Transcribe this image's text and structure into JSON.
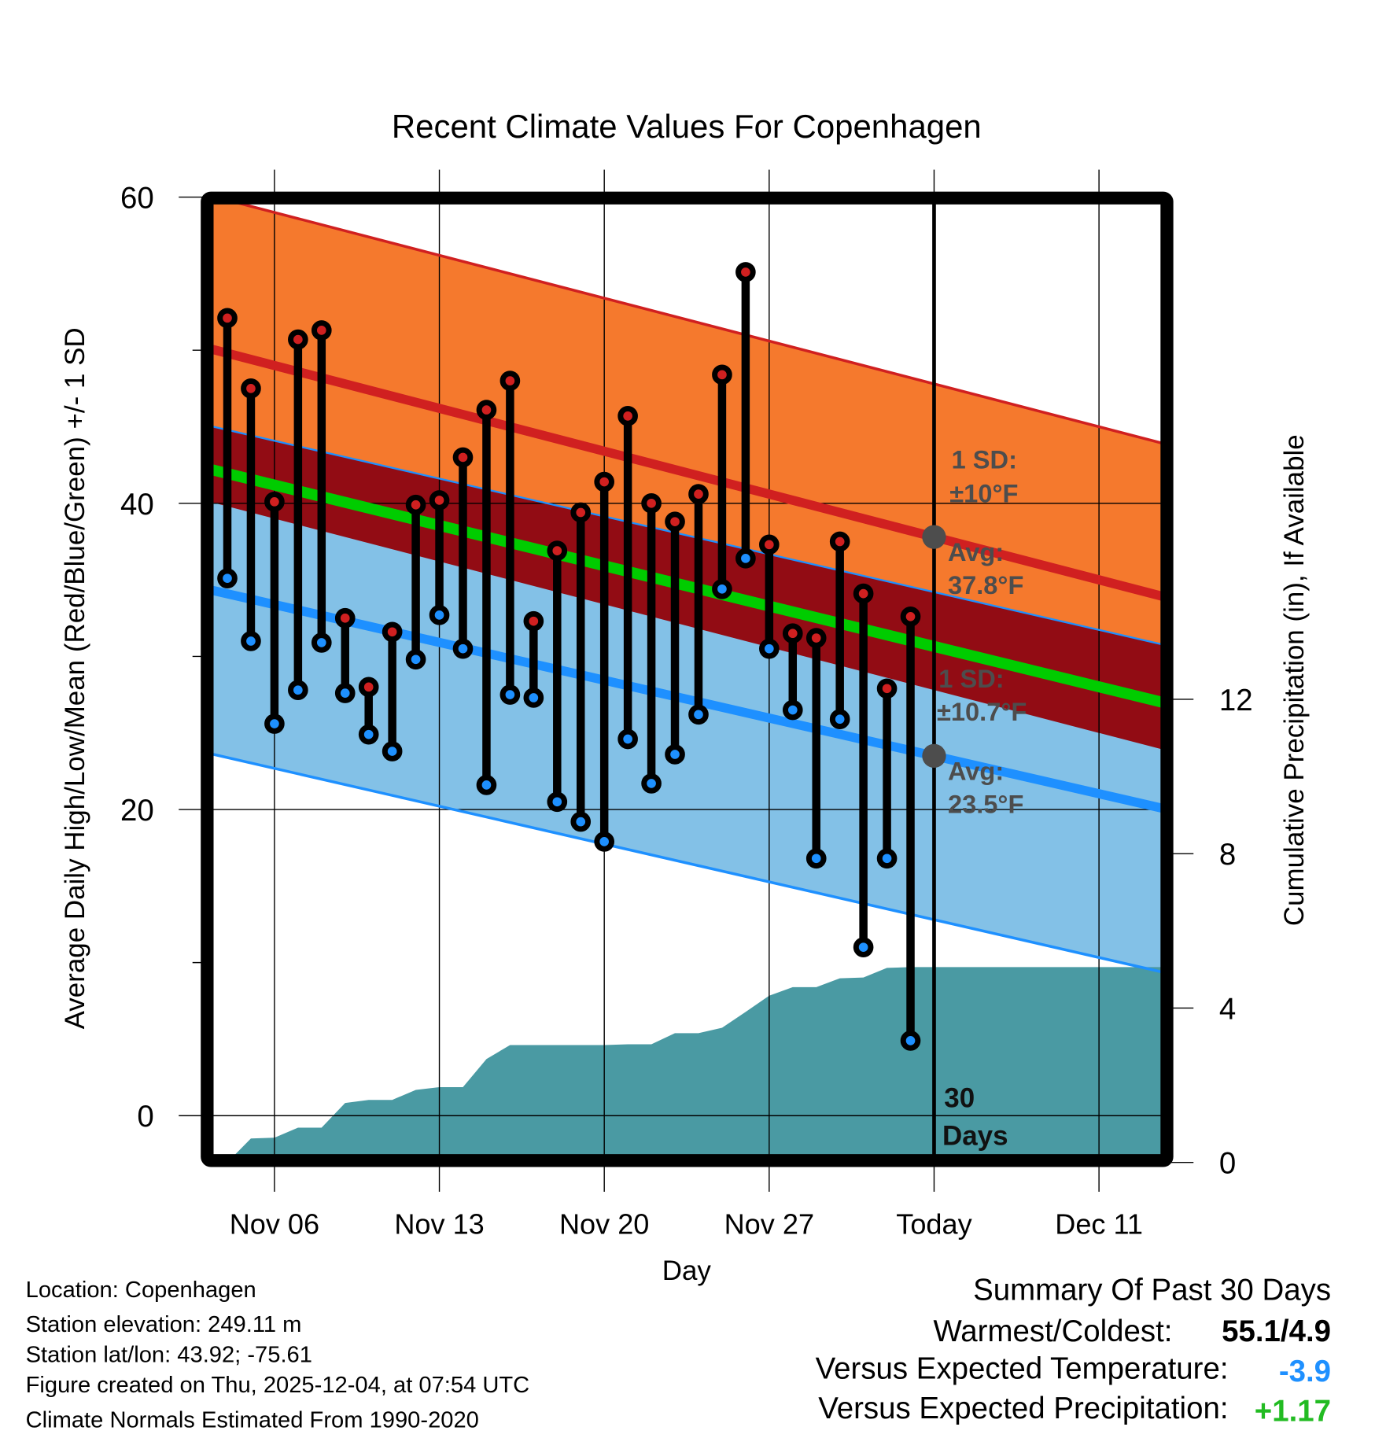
{
  "chart_data": {
    "type": "line",
    "title": "Recent Climate Values For Copenhagen",
    "xlabel": "Day",
    "ylabel": "Average Daily High/Low/Mean (Red/Blue/Green) +/- 1 SD",
    "y2label": "Cumulative Precipitation (in), If Available",
    "ylim": [
      -3,
      60
    ],
    "y2lim": [
      0,
      18.6
    ],
    "yticks": [
      0,
      20,
      40,
      60
    ],
    "yminor_ticks": [
      10,
      30,
      50
    ],
    "y2ticks": [
      0,
      4,
      8,
      12
    ],
    "xtick_labels": [
      "Nov 06",
      "Nov 13",
      "Nov 20",
      "Nov 27",
      "Today",
      "Dec 11"
    ],
    "xtick_day_offsets": [
      -28,
      -21,
      -14,
      -7,
      0,
      7
    ],
    "x_range_day_offsets": [
      -30.6,
      9.7
    ],
    "grid": true,
    "days": [
      "Nov 04",
      "Nov 05",
      "Nov 06",
      "Nov 07",
      "Nov 08",
      "Nov 09",
      "Nov 10",
      "Nov 11",
      "Nov 12",
      "Nov 13",
      "Nov 14",
      "Nov 15",
      "Nov 16",
      "Nov 17",
      "Nov 18",
      "Nov 19",
      "Nov 20",
      "Nov 21",
      "Nov 22",
      "Nov 23",
      "Nov 24",
      "Nov 25",
      "Nov 26",
      "Nov 27",
      "Nov 28",
      "Nov 29",
      "Nov 30",
      "Dec 01",
      "Dec 02",
      "Dec 03"
    ],
    "day_offsets": [
      -30,
      -29,
      -28,
      -27,
      -26,
      -25,
      -24,
      -23,
      -22,
      -21,
      -20,
      -19,
      -18,
      -17,
      -16,
      -15,
      -14,
      -13,
      -12,
      -11,
      -10,
      -9,
      -8,
      -7,
      -6,
      -5,
      -4,
      -3,
      -2,
      -1
    ],
    "series": [
      {
        "name": "Daily High",
        "color": "#d02020",
        "values": [
          52.1,
          47.5,
          40.1,
          50.7,
          51.3,
          32.5,
          28.0,
          31.6,
          39.9,
          40.2,
          43.0,
          46.1,
          48.0,
          32.3,
          36.9,
          39.4,
          41.4,
          45.7,
          40.0,
          38.8,
          40.6,
          48.4,
          55.1,
          37.3,
          31.5,
          31.2,
          37.5,
          34.1,
          27.9,
          32.6
        ]
      },
      {
        "name": "Daily Low",
        "color": "#1e90ff",
        "values": [
          35.1,
          31.0,
          25.6,
          27.8,
          30.9,
          27.6,
          24.9,
          23.8,
          29.8,
          32.7,
          30.5,
          21.6,
          27.5,
          27.3,
          20.5,
          19.2,
          17.9,
          24.6,
          21.7,
          23.6,
          26.2,
          34.4,
          36.4,
          30.5,
          26.5,
          16.8,
          25.9,
          11.0,
          16.8,
          4.9
        ]
      },
      {
        "name": "Cumulative Precipitation",
        "color": "#4a9aa3",
        "axis": "right",
        "values": [
          0.0,
          0.62,
          0.64,
          0.9,
          0.9,
          1.54,
          1.62,
          1.62,
          1.88,
          1.95,
          1.95,
          2.68,
          3.04,
          3.04,
          3.04,
          3.04,
          3.04,
          3.06,
          3.06,
          3.35,
          3.35,
          3.49,
          3.9,
          4.32,
          4.54,
          4.54,
          4.77,
          4.79,
          5.04,
          5.06
        ]
      }
    ],
    "normals": {
      "high_avg_today": 37.8,
      "high_sd": 10.0,
      "low_avg_today": 23.5,
      "low_sd": 10.7,
      "high_slope_per_day": -0.4,
      "low_slope_per_day": -0.353,
      "colors": {
        "high_band": "#f5792d",
        "high_line": "#d02020",
        "overlap_band": "#920c14",
        "low_band": "#83c1e7",
        "low_line": "#1e90ff",
        "mean_line": "#00cc00",
        "precip": "#4a9aa3"
      }
    },
    "annotations": {
      "high_sd": [
        "1 SD:",
        "±10°F"
      ],
      "high_avg": [
        "Avg:",
        "37.8°F"
      ],
      "low_sd": [
        "1 SD:",
        "±10.7°F"
      ],
      "low_avg": [
        "Avg:",
        "23.5°F"
      ],
      "window": [
        "30",
        "Days"
      ]
    }
  },
  "footer": {
    "lines": [
      "Location: Copenhagen",
      "Station elevation: 249.11 m",
      "Station lat/lon: 43.92; -75.61",
      "Figure created on Thu, 2025-12-04, at 07:54 UTC",
      "Climate Normals Estimated From 1990-2020"
    ]
  },
  "summary": {
    "title": "Summary Of Past 30 Days",
    "warmest_coldest_label": "Warmest/Coldest:",
    "warmest_coldest_value": "55.1/4.9",
    "temp_label": "Versus Expected Temperature:",
    "temp_value": "-3.9",
    "temp_color": "#1e90ff",
    "precip_label": "Versus Expected Precipitation:",
    "precip_value": "+1.17",
    "precip_color": "#22bb22"
  }
}
